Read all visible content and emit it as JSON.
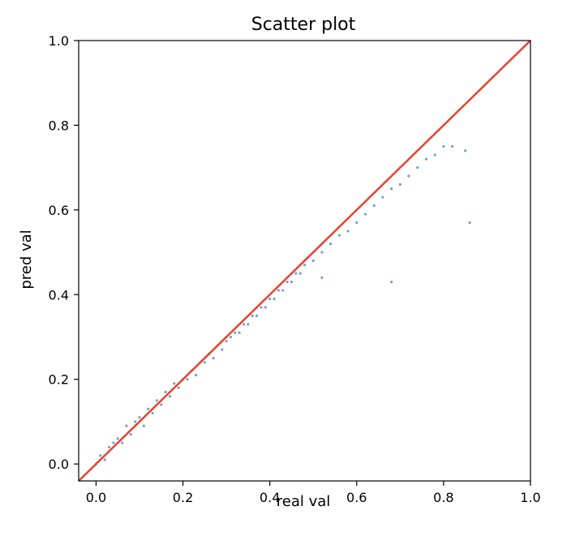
{
  "chart_data": {
    "type": "scatter",
    "title": "Scatter plot",
    "xlabel": "real val",
    "ylabel": "pred val",
    "xlim": [
      -0.04,
      1.0
    ],
    "ylim": [
      -0.04,
      1.0
    ],
    "x_ticks": [
      0.0,
      0.2,
      0.4,
      0.6,
      0.8,
      1.0
    ],
    "y_ticks": [
      0.0,
      0.2,
      0.4,
      0.6,
      0.8,
      1.0
    ],
    "x_tick_labels": [
      "0.0",
      "0.2",
      "0.4",
      "0.6",
      "0.8",
      "1.0"
    ],
    "y_tick_labels": [
      "0.0",
      "0.2",
      "0.4",
      "0.6",
      "0.8",
      "1.0"
    ],
    "grid": false,
    "series": [
      {
        "marker_color": "#4a7fb5",
        "points": [
          [
            0.0,
            0.0
          ],
          [
            0.01,
            0.02
          ],
          [
            0.02,
            0.01
          ],
          [
            0.03,
            0.04
          ],
          [
            0.04,
            0.05
          ],
          [
            0.05,
            0.06
          ],
          [
            0.06,
            0.05
          ],
          [
            0.07,
            0.09
          ],
          [
            0.08,
            0.07
          ],
          [
            0.09,
            0.1
          ],
          [
            0.1,
            0.11
          ],
          [
            0.11,
            0.09
          ],
          [
            0.12,
            0.13
          ],
          [
            0.13,
            0.12
          ],
          [
            0.14,
            0.15
          ],
          [
            0.15,
            0.14
          ],
          [
            0.16,
            0.17
          ],
          [
            0.17,
            0.16
          ],
          [
            0.18,
            0.19
          ],
          [
            0.19,
            0.18
          ],
          [
            0.2,
            0.2
          ],
          [
            0.21,
            0.2
          ],
          [
            0.22,
            0.22
          ],
          [
            0.23,
            0.21
          ],
          [
            0.24,
            0.24
          ],
          [
            0.25,
            0.24
          ],
          [
            0.26,
            0.26
          ],
          [
            0.27,
            0.25
          ],
          [
            0.28,
            0.28
          ],
          [
            0.29,
            0.27
          ],
          [
            0.3,
            0.29
          ],
          [
            0.31,
            0.3
          ],
          [
            0.32,
            0.31
          ],
          [
            0.33,
            0.31
          ],
          [
            0.34,
            0.33
          ],
          [
            0.35,
            0.33
          ],
          [
            0.36,
            0.35
          ],
          [
            0.37,
            0.35
          ],
          [
            0.38,
            0.37
          ],
          [
            0.39,
            0.37
          ],
          [
            0.4,
            0.39
          ],
          [
            0.41,
            0.39
          ],
          [
            0.42,
            0.41
          ],
          [
            0.43,
            0.41
          ],
          [
            0.44,
            0.43
          ],
          [
            0.45,
            0.43
          ],
          [
            0.46,
            0.45
          ],
          [
            0.47,
            0.45
          ],
          [
            0.48,
            0.47
          ],
          [
            0.5,
            0.48
          ],
          [
            0.52,
            0.5
          ],
          [
            0.54,
            0.52
          ],
          [
            0.56,
            0.54
          ],
          [
            0.58,
            0.55
          ],
          [
            0.6,
            0.57
          ],
          [
            0.62,
            0.59
          ],
          [
            0.64,
            0.61
          ],
          [
            0.66,
            0.63
          ],
          [
            0.68,
            0.65
          ],
          [
            0.7,
            0.66
          ],
          [
            0.72,
            0.68
          ],
          [
            0.74,
            0.7
          ],
          [
            0.76,
            0.72
          ],
          [
            0.78,
            0.73
          ],
          [
            0.8,
            0.75
          ],
          [
            0.82,
            0.75
          ],
          [
            0.85,
            0.74
          ],
          [
            0.86,
            0.57
          ],
          [
            0.68,
            0.43
          ],
          [
            0.52,
            0.44
          ]
        ]
      }
    ],
    "reference_line": {
      "from": [
        -0.04,
        -0.04
      ],
      "to": [
        1.0,
        1.0
      ],
      "color": "#e8412f"
    }
  }
}
